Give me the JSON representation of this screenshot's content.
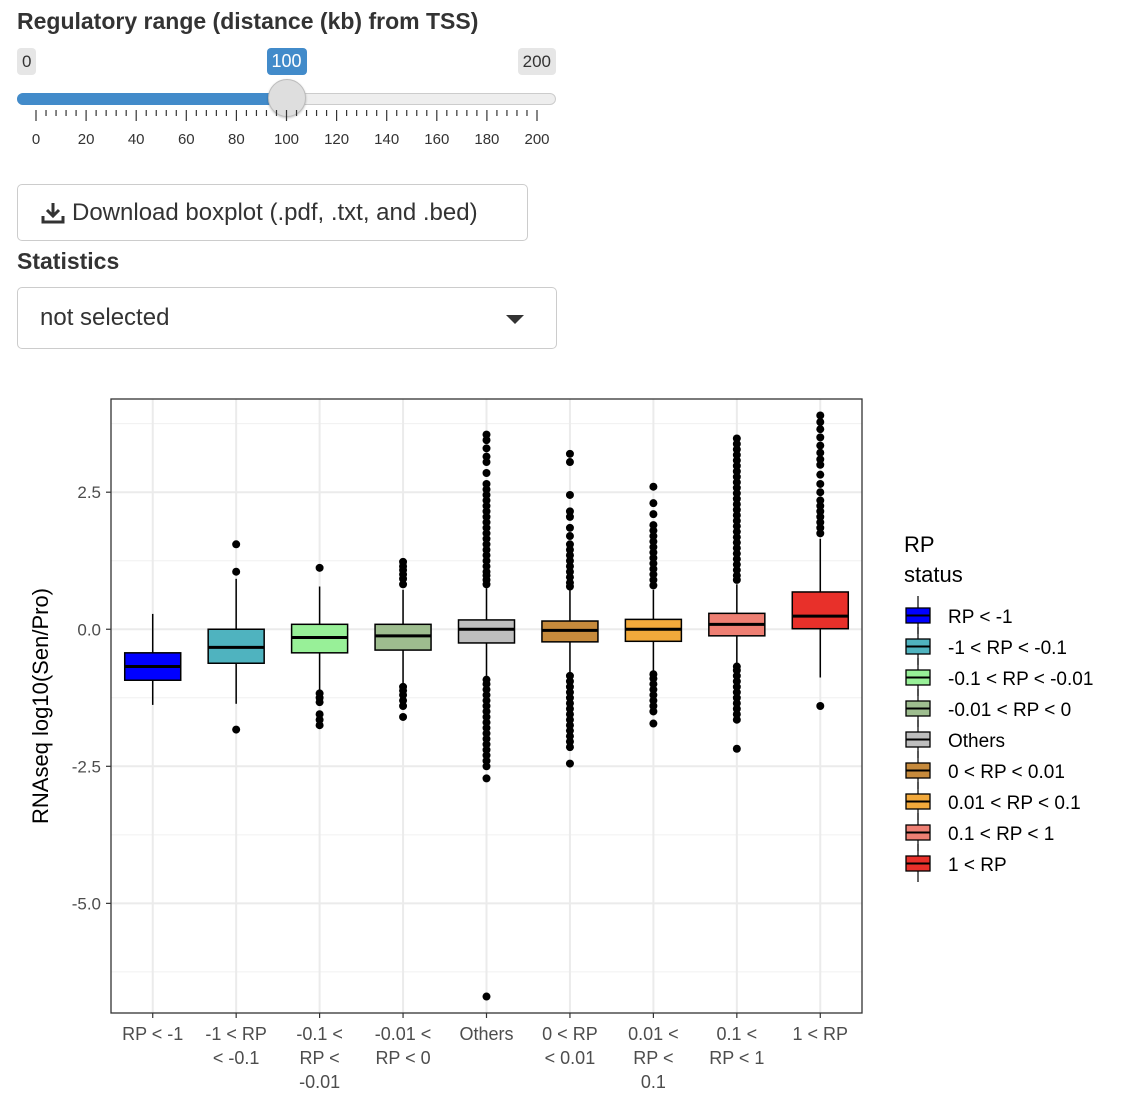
{
  "slider": {
    "label": "Regulatory range (distance (kb) from TSS)",
    "min": "0",
    "max": "200",
    "value": "100",
    "value_fraction": 0.5,
    "tick_labels": [
      "0",
      "20",
      "40",
      "60",
      "80",
      "100",
      "120",
      "140",
      "160",
      "180",
      "200"
    ],
    "accent_color": "#428bca"
  },
  "download_button": {
    "label": "Download boxplot (.pdf, .txt, and .bed)",
    "icon": "download-icon"
  },
  "statistics": {
    "label": "Statistics",
    "selected": "not selected",
    "icon": "caret-down-icon"
  },
  "chart_data": {
    "type": "boxplot",
    "xlabel": "",
    "ylabel": "RNAseq log10(Sen/Pro)",
    "ylim": [
      -7.0,
      4.2
    ],
    "yticks": [
      "2.5",
      "0.0",
      "-2.5",
      "-5.0"
    ],
    "ytick_values": [
      2.5,
      0.0,
      -2.5,
      -5.0
    ],
    "grid": true,
    "legend_title": [
      "RP",
      "status"
    ],
    "legend_position": "right",
    "categories": [
      [
        "RP < -1"
      ],
      [
        "-1 < RP",
        "< -0.1"
      ],
      [
        "-0.1 <",
        "RP <",
        "-0.01"
      ],
      [
        "-0.01 <",
        "RP < 0"
      ],
      [
        "Others"
      ],
      [
        "0 < RP",
        "< 0.01"
      ],
      [
        "0.01 <",
        "RP <",
        "0.1"
      ],
      [
        "0.1 <",
        "RP < 1"
      ],
      [
        "1 < RP"
      ]
    ],
    "legend": [
      "RP < -1",
      "-1 < RP < -0.1",
      "-0.1 < RP < -0.01",
      "-0.01 < RP < 0",
      "Others",
      "0 < RP < 0.01",
      "0.01 < RP < 0.1",
      "0.1 < RP < 1",
      "1 < RP"
    ],
    "colors": [
      "#0000ff",
      "#4fb3bf",
      "#98f098",
      "#9ebd8f",
      "#bebebe",
      "#c68a3c",
      "#f2a93b",
      "#ee7f73",
      "#e8302a"
    ],
    "boxes": [
      {
        "whisker_low": -1.38,
        "q1": -0.93,
        "median": -0.68,
        "q3": -0.43,
        "whisker_high": 0.28,
        "outliers": []
      },
      {
        "whisker_low": -1.36,
        "q1": -0.62,
        "median": -0.33,
        "q3": 0.0,
        "whisker_high": 0.92,
        "outliers": [
          1.55,
          1.05,
          -1.83
        ]
      },
      {
        "whisker_low": -1.1,
        "q1": -0.43,
        "median": -0.15,
        "q3": 0.09,
        "whisker_high": 0.78,
        "outliers": [
          1.12,
          -1.17,
          -1.25,
          -1.33,
          -1.55,
          -1.65,
          -1.75
        ]
      },
      {
        "whisker_low": -1.0,
        "q1": -0.38,
        "median": -0.12,
        "q3": 0.09,
        "whisker_high": 0.72,
        "outliers": [
          1.23,
          1.15,
          1.08,
          1.0,
          0.92,
          0.82,
          -1.05,
          -1.12,
          -1.2,
          -1.3,
          -1.4,
          -1.6
        ]
      },
      {
        "whisker_low": -0.85,
        "q1": -0.25,
        "median": 0.0,
        "q3": 0.17,
        "whisker_high": 0.75,
        "outliers": [
          3.55,
          3.45,
          3.3,
          3.15,
          3.05,
          2.85,
          2.65,
          2.55,
          2.45,
          2.35,
          2.25,
          2.15,
          2.05,
          1.95,
          1.85,
          1.75,
          1.65,
          1.55,
          1.45,
          1.35,
          1.25,
          1.15,
          1.05,
          0.98,
          0.9,
          0.82,
          -0.92,
          -1.0,
          -1.1,
          -1.2,
          -1.3,
          -1.4,
          -1.5,
          -1.6,
          -1.7,
          -1.8,
          -1.9,
          -2.0,
          -2.1,
          -2.2,
          -2.3,
          -2.4,
          -2.5,
          -2.72,
          -6.7
        ]
      },
      {
        "whisker_low": -0.78,
        "q1": -0.23,
        "median": -0.02,
        "q3": 0.15,
        "whisker_high": 0.72,
        "outliers": [
          3.2,
          3.05,
          2.45,
          2.15,
          2.05,
          1.85,
          1.7,
          1.55,
          1.45,
          1.35,
          1.25,
          1.15,
          1.05,
          0.95,
          0.85,
          0.78,
          -0.85,
          -0.95,
          -1.05,
          -1.15,
          -1.25,
          -1.35,
          -1.45,
          -1.55,
          -1.65,
          -1.75,
          -1.85,
          -1.95,
          -2.05,
          -2.15,
          -2.45
        ]
      },
      {
        "whisker_low": -0.78,
        "q1": -0.22,
        "median": 0.0,
        "q3": 0.18,
        "whisker_high": 0.72,
        "outliers": [
          2.6,
          2.3,
          2.1,
          1.9,
          1.8,
          1.7,
          1.6,
          1.5,
          1.4,
          1.3,
          1.2,
          1.1,
          1.0,
          0.9,
          0.8,
          -0.82,
          -0.9,
          -1.0,
          -1.1,
          -1.2,
          -1.3,
          -1.4,
          -1.5,
          -1.72
        ]
      },
      {
        "whisker_low": -0.65,
        "q1": -0.12,
        "median": 0.09,
        "q3": 0.29,
        "whisker_high": 0.82,
        "outliers": [
          3.48,
          3.38,
          3.28,
          3.18,
          3.08,
          2.98,
          2.88,
          2.78,
          2.68,
          2.58,
          2.48,
          2.38,
          2.28,
          2.18,
          2.08,
          1.98,
          1.88,
          1.78,
          1.68,
          1.58,
          1.48,
          1.38,
          1.28,
          1.18,
          1.08,
          0.98,
          0.9,
          -0.68,
          -0.75,
          -0.85,
          -0.95,
          -1.05,
          -1.15,
          -1.25,
          -1.35,
          -1.45,
          -1.55,
          -1.65,
          -2.18
        ]
      },
      {
        "whisker_low": -0.88,
        "q1": 0.01,
        "median": 0.24,
        "q3": 0.68,
        "whisker_high": 1.65,
        "outliers": [
          3.9,
          3.78,
          3.65,
          3.5,
          3.35,
          3.22,
          3.1,
          3.0,
          2.82,
          2.65,
          2.5,
          2.35,
          2.25,
          2.15,
          2.05,
          1.95,
          1.85,
          1.75,
          -1.4
        ]
      }
    ]
  }
}
